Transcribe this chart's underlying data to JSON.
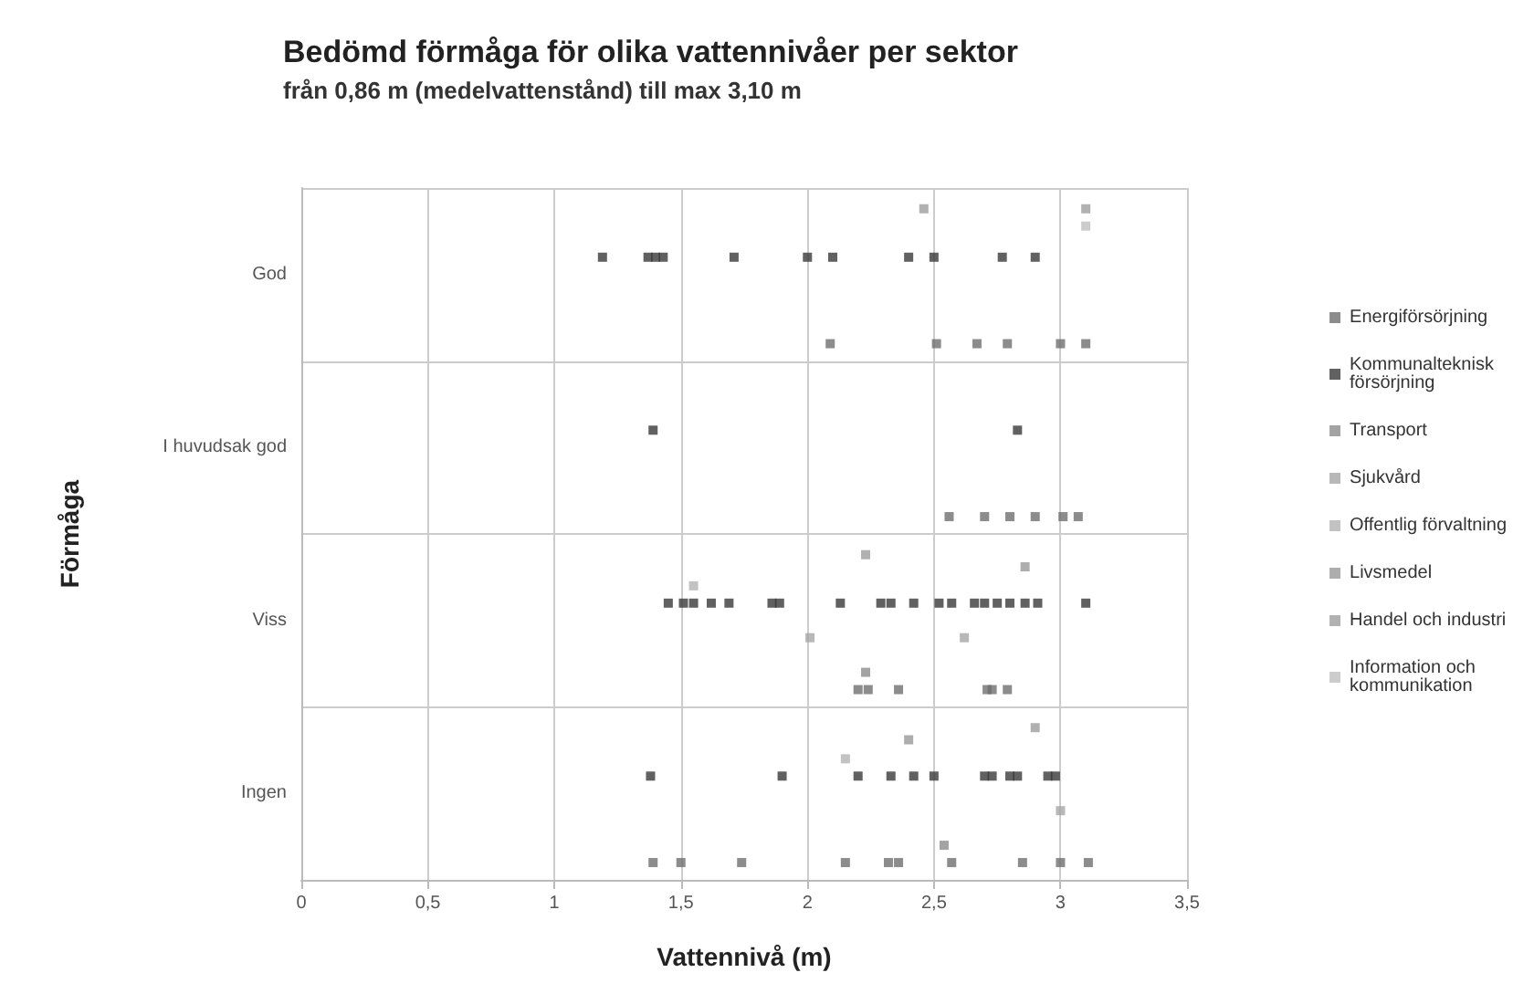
{
  "chart_data": {
    "type": "scatter",
    "orientation": "horizontal",
    "title": "Bedömd förmåga för olika vattennivåer per sektor",
    "subtitle": "från 0,86 m (medelvattenstånd) till max 3,10 m",
    "xlabel": "Vattennivå (m)",
    "ylabel": "Förmåga",
    "categories": [
      "God",
      "I huvudsak god",
      "Viss",
      "Ingen"
    ],
    "xlim": [
      0,
      3.5
    ],
    "xticks": [
      0,
      {
        "value": 0.5,
        "label": "0,5"
      },
      1,
      {
        "value": 1.5,
        "label": "1,5"
      },
      2,
      {
        "value": 2.5,
        "label": "2,5"
      },
      3,
      {
        "value": 3.5,
        "label": "3,5"
      }
    ],
    "grid": true,
    "legend": "right",
    "marker": "square",
    "series": [
      {
        "name": "Energiförsörjning",
        "color": "#6f6f6f",
        "x": [
          "God",
          "God",
          "God",
          "God",
          "God",
          "God",
          "I huvudsak god",
          "I huvudsak god",
          "I huvudsak god",
          "I huvudsak god",
          "I huvudsak god",
          "I huvudsak god",
          "Viss",
          "Viss",
          "Viss",
          "Viss",
          "Viss",
          "Viss",
          "Ingen",
          "Ingen",
          "Ingen",
          "Ingen",
          "Ingen",
          "Ingen",
          "Ingen",
          "Ingen",
          "Ingen",
          "Ingen"
        ],
        "values": [
          2.09,
          2.51,
          2.67,
          2.79,
          3.0,
          3.1,
          2.56,
          2.7,
          2.8,
          2.9,
          3.01,
          3.07,
          2.2,
          2.24,
          2.36,
          2.71,
          2.73,
          2.79,
          1.39,
          1.5,
          1.74,
          2.15,
          2.32,
          2.36,
          2.57,
          2.85,
          3.0,
          3.11
        ]
      },
      {
        "name": "Kommunalteknisk försörjning",
        "color": "#3a3a3a",
        "x": [
          "God",
          "God",
          "God",
          "God",
          "God",
          "God",
          "God",
          "God",
          "God",
          "God",
          "God",
          "I huvudsak god",
          "I huvudsak god",
          "Viss",
          "Viss",
          "Viss",
          "Viss",
          "Viss",
          "Viss",
          "Viss",
          "Viss",
          "Viss",
          "Viss",
          "Viss",
          "Viss",
          "Viss",
          "Viss",
          "Viss",
          "Viss",
          "Viss",
          "Viss",
          "Viss",
          "Viss",
          "Ingen",
          "Ingen",
          "Ingen",
          "Ingen",
          "Ingen",
          "Ingen",
          "Ingen",
          "Ingen",
          "Ingen",
          "Ingen",
          "Ingen",
          "Ingen"
        ],
        "values": [
          1.19,
          1.37,
          1.4,
          1.43,
          1.71,
          2.0,
          2.1,
          2.4,
          2.5,
          2.77,
          2.9,
          1.39,
          2.83,
          1.45,
          1.51,
          1.55,
          1.62,
          1.69,
          1.86,
          1.89,
          2.13,
          2.29,
          2.33,
          2.42,
          2.52,
          2.57,
          2.66,
          2.7,
          2.75,
          2.8,
          2.86,
          2.91,
          3.1,
          1.38,
          1.9,
          2.2,
          2.33,
          2.42,
          2.5,
          2.7,
          2.73,
          2.8,
          2.83,
          2.95,
          2.98
        ]
      },
      {
        "name": "Transport",
        "color": "#8c8c8c",
        "x": [
          "Viss",
          "Ingen"
        ],
        "values": [
          2.23,
          2.54
        ]
      },
      {
        "name": "Sjukvård",
        "color": "#a6a6a6",
        "x": [
          "Viss",
          "Viss",
          "Ingen"
        ],
        "values": [
          2.01,
          2.62,
          3.0
        ]
      },
      {
        "name": "Offentlig förvaltning",
        "color": "#b3b3b3",
        "x": [
          "Viss",
          "Ingen"
        ],
        "values": [
          1.55,
          2.15
        ]
      },
      {
        "name": "Livsmedel",
        "color": "#999999",
        "x": [
          "Viss",
          "Ingen"
        ],
        "values": [
          2.86,
          2.4
        ]
      },
      {
        "name": "Handel och industri",
        "color": "#9e9e9e",
        "x": [
          "Viss",
          "Ingen",
          "God",
          "God"
        ],
        "values": [
          2.23,
          2.9,
          2.46,
          3.1
        ]
      },
      {
        "name": "Information och kommunikation",
        "color": "#bfbfbf",
        "x": [
          "God"
        ],
        "values": [
          3.1
        ]
      }
    ]
  }
}
